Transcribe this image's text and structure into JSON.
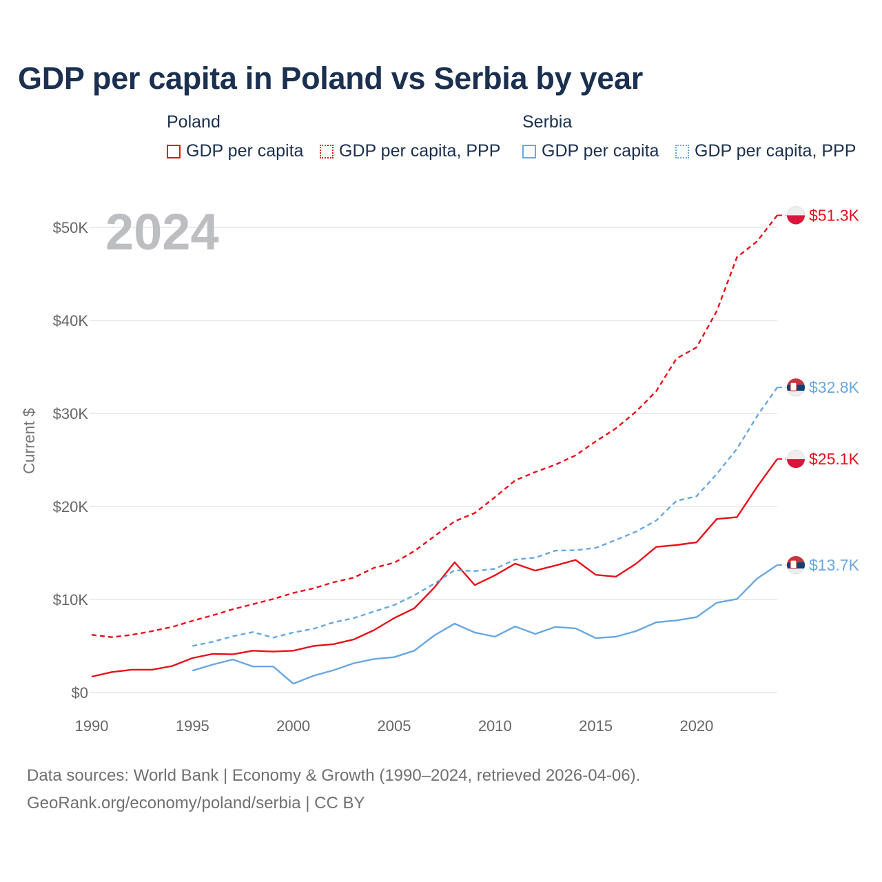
{
  "title": "GDP per capita in Poland vs Serbia by year",
  "legend": {
    "poland": {
      "country": "Poland",
      "solid": "GDP per capita",
      "dotted": "GDP per capita, PPP"
    },
    "serbia": {
      "country": "Serbia",
      "solid": "GDP per capita",
      "dotted": "GDP per capita, PPP"
    }
  },
  "colors": {
    "poland": "#e8101a",
    "serbia": "#68a7e3",
    "title": "#1b3050",
    "grid": "#e6e6e6"
  },
  "year_label": "2024",
  "footer": {
    "line1": "Data sources: World Bank | Economy & Growth (1990–2024, retrieved 2026-04-06).",
    "line2": "GeoRank.org/economy/poland/serbia | CC BY"
  },
  "chart_data": {
    "type": "line",
    "title": "GDP per capita in Poland vs Serbia by year",
    "xlabel": "",
    "ylabel": "Current $",
    "xlim": [
      1990,
      2024
    ],
    "ylim": [
      0,
      50000
    ],
    "x_ticks": [
      {
        "value": 1990,
        "label": "1990"
      },
      {
        "value": 1995,
        "label": "1995"
      },
      {
        "value": 2000,
        "label": "2000"
      },
      {
        "value": 2005,
        "label": "2005"
      },
      {
        "value": 2010,
        "label": "2010"
      },
      {
        "value": 2015,
        "label": "2015"
      },
      {
        "value": 2020,
        "label": "2020"
      }
    ],
    "y_ticks": [
      {
        "value": 0,
        "label": "$0"
      },
      {
        "value": 10000,
        "label": "$10K"
      },
      {
        "value": 20000,
        "label": "$20K"
      },
      {
        "value": 30000,
        "label": "$30K"
      },
      {
        "value": 40000,
        "label": "$40K"
      },
      {
        "value": 50000,
        "label": "$50K"
      }
    ],
    "grid": true,
    "series": [
      {
        "name": "Poland GDP per capita, PPP",
        "country": "poland",
        "dash": "dashed",
        "end_label": "$51.3K",
        "points": [
          [
            1990,
            6200
          ],
          [
            1991,
            5950
          ],
          [
            1992,
            6200
          ],
          [
            1993,
            6600
          ],
          [
            1994,
            7050
          ],
          [
            1995,
            7700
          ],
          [
            1996,
            8300
          ],
          [
            1997,
            8950
          ],
          [
            1998,
            9500
          ],
          [
            1999,
            10050
          ],
          [
            2000,
            10700
          ],
          [
            2001,
            11200
          ],
          [
            2002,
            11850
          ],
          [
            2003,
            12350
          ],
          [
            2004,
            13400
          ],
          [
            2005,
            13950
          ],
          [
            2006,
            15200
          ],
          [
            2007,
            16800
          ],
          [
            2008,
            18400
          ],
          [
            2009,
            19300
          ],
          [
            2010,
            21000
          ],
          [
            2011,
            22800
          ],
          [
            2012,
            23700
          ],
          [
            2013,
            24500
          ],
          [
            2014,
            25500
          ],
          [
            2015,
            27000
          ],
          [
            2016,
            28400
          ],
          [
            2017,
            30200
          ],
          [
            2018,
            32400
          ],
          [
            2019,
            35900
          ],
          [
            2020,
            37100
          ],
          [
            2021,
            41000
          ],
          [
            2022,
            46800
          ],
          [
            2023,
            48500
          ],
          [
            2024,
            51300
          ]
        ]
      },
      {
        "name": "Poland GDP per capita",
        "country": "poland",
        "dash": "solid",
        "end_label": "$25.1K",
        "points": [
          [
            1990,
            1700
          ],
          [
            1991,
            2200
          ],
          [
            1992,
            2450
          ],
          [
            1993,
            2450
          ],
          [
            1994,
            2850
          ],
          [
            1995,
            3700
          ],
          [
            1996,
            4150
          ],
          [
            1997,
            4100
          ],
          [
            1998,
            4500
          ],
          [
            1999,
            4400
          ],
          [
            2000,
            4500
          ],
          [
            2001,
            5000
          ],
          [
            2002,
            5200
          ],
          [
            2003,
            5700
          ],
          [
            2004,
            6700
          ],
          [
            2005,
            8000
          ],
          [
            2006,
            9050
          ],
          [
            2007,
            11300
          ],
          [
            2008,
            14000
          ],
          [
            2009,
            11550
          ],
          [
            2010,
            12600
          ],
          [
            2011,
            13850
          ],
          [
            2012,
            13100
          ],
          [
            2013,
            13650
          ],
          [
            2014,
            14250
          ],
          [
            2015,
            12650
          ],
          [
            2016,
            12450
          ],
          [
            2017,
            13850
          ],
          [
            2018,
            15650
          ],
          [
            2019,
            15850
          ],
          [
            2020,
            16150
          ],
          [
            2021,
            18650
          ],
          [
            2022,
            18850
          ],
          [
            2023,
            22100
          ],
          [
            2024,
            25100
          ]
        ]
      },
      {
        "name": "Serbia GDP per capita, PPP",
        "country": "serbia",
        "dash": "dashed",
        "end_label": "$32.8K",
        "points": [
          [
            1995,
            5000
          ],
          [
            1996,
            5450
          ],
          [
            1997,
            6050
          ],
          [
            1998,
            6500
          ],
          [
            1999,
            5900
          ],
          [
            2000,
            6450
          ],
          [
            2001,
            6850
          ],
          [
            2002,
            7550
          ],
          [
            2003,
            8000
          ],
          [
            2004,
            8700
          ],
          [
            2005,
            9400
          ],
          [
            2006,
            10450
          ],
          [
            2007,
            11700
          ],
          [
            2008,
            13150
          ],
          [
            2009,
            13050
          ],
          [
            2010,
            13300
          ],
          [
            2011,
            14300
          ],
          [
            2012,
            14500
          ],
          [
            2013,
            15250
          ],
          [
            2014,
            15300
          ],
          [
            2015,
            15550
          ],
          [
            2016,
            16400
          ],
          [
            2017,
            17300
          ],
          [
            2018,
            18500
          ],
          [
            2019,
            20600
          ],
          [
            2020,
            21100
          ],
          [
            2021,
            23500
          ],
          [
            2022,
            26200
          ],
          [
            2023,
            29700
          ],
          [
            2024,
            32800
          ]
        ]
      },
      {
        "name": "Serbia GDP per capita",
        "country": "serbia",
        "dash": "solid",
        "end_label": "$13.7K",
        "points": [
          [
            1995,
            2350
          ],
          [
            1996,
            3000
          ],
          [
            1997,
            3550
          ],
          [
            1998,
            2800
          ],
          [
            1999,
            2800
          ],
          [
            2000,
            950
          ],
          [
            2001,
            1800
          ],
          [
            2002,
            2400
          ],
          [
            2003,
            3150
          ],
          [
            2004,
            3600
          ],
          [
            2005,
            3800
          ],
          [
            2006,
            4500
          ],
          [
            2007,
            6150
          ],
          [
            2008,
            7400
          ],
          [
            2009,
            6450
          ],
          [
            2010,
            6000
          ],
          [
            2011,
            7100
          ],
          [
            2012,
            6300
          ],
          [
            2013,
            7050
          ],
          [
            2014,
            6900
          ],
          [
            2015,
            5850
          ],
          [
            2016,
            6000
          ],
          [
            2017,
            6600
          ],
          [
            2018,
            7550
          ],
          [
            2019,
            7750
          ],
          [
            2020,
            8100
          ],
          [
            2021,
            9650
          ],
          [
            2022,
            10050
          ],
          [
            2023,
            12250
          ],
          [
            2024,
            13700
          ]
        ]
      }
    ]
  }
}
